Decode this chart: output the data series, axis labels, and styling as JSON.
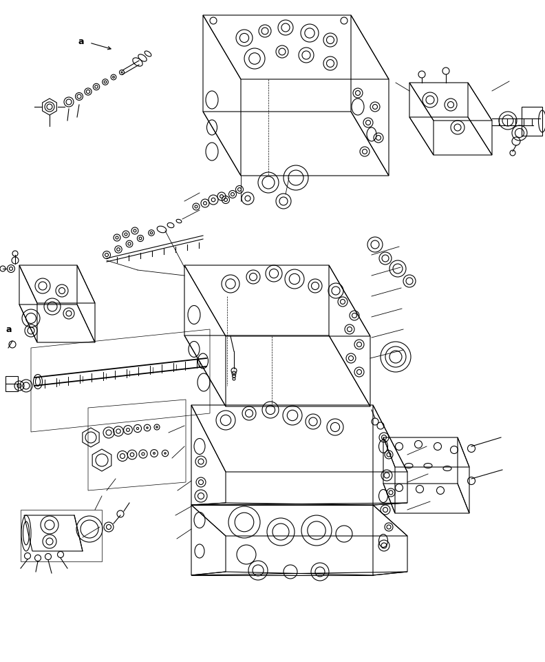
{
  "background_color": "#ffffff",
  "line_color": "#000000",
  "line_width": 0.8,
  "fig_width": 7.92,
  "fig_height": 9.61
}
